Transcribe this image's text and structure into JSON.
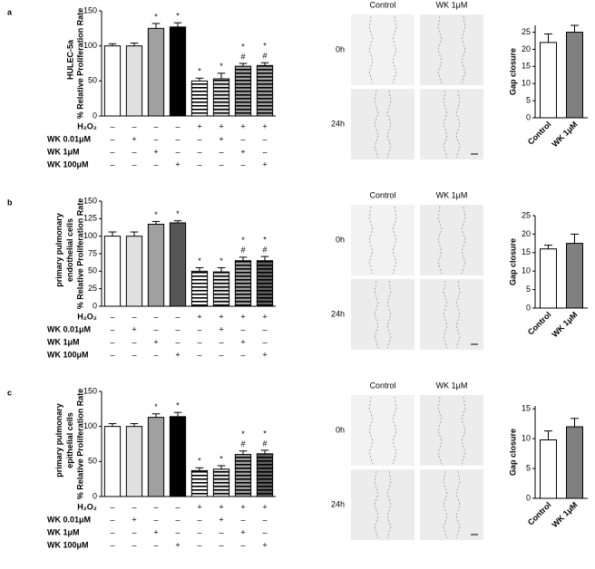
{
  "chart_data": [
    {
      "type": "bar",
      "ylabel": "% Relative Proliferation Rate",
      "ylim": [
        0,
        150
      ],
      "yticks": [
        0,
        50,
        100,
        150
      ],
      "values": [
        100,
        100,
        125,
        127,
        50,
        53,
        71,
        72
      ],
      "errors": [
        3,
        4,
        7,
        6,
        4,
        8,
        4,
        4
      ],
      "colors": [
        "#ffffff",
        "#e0e0e0",
        "#a0a0a0",
        "#000000",
        "#ffffff",
        "#e0e0e0",
        "#a0a0a0",
        "#a0a0a0"
      ],
      "hatch": [
        false,
        false,
        false,
        false,
        true,
        true,
        true,
        true
      ],
      "annotations": [
        {
          "bar": 2,
          "labels": [
            "*"
          ]
        },
        {
          "bar": 3,
          "labels": [
            "*"
          ]
        },
        {
          "bar": 4,
          "labels": [
            "*"
          ]
        },
        {
          "bar": 5,
          "labels": [
            "*"
          ]
        },
        {
          "bar": 6,
          "labels": [
            "*",
            "#"
          ]
        },
        {
          "bar": 7,
          "labels": [
            "*",
            "#"
          ]
        }
      ]
    },
    {
      "type": "bar",
      "ylabel": "Gap closure",
      "ylim": [
        0,
        27
      ],
      "yticks": [
        0,
        5,
        10,
        15,
        20,
        25
      ],
      "categories": [
        "Control",
        "WK 1μM"
      ],
      "values": [
        22,
        25
      ],
      "errors": [
        2.5,
        2
      ],
      "colors": [
        "#ffffff",
        "#808080"
      ]
    },
    {
      "type": "bar",
      "ylabel": "% Relative Proliferation Rate",
      "ylim": [
        0,
        150
      ],
      "yticks": [
        0,
        25,
        50,
        75,
        100,
        125,
        150
      ],
      "values": [
        100,
        100,
        117,
        119,
        50,
        49,
        65,
        65
      ],
      "errors": [
        6,
        6,
        4,
        3,
        5,
        6,
        5,
        6
      ],
      "colors": [
        "#ffffff",
        "#e0e0e0",
        "#a0a0a0",
        "#555555",
        "#ffffff",
        "#e0e0e0",
        "#a0a0a0",
        "#606060"
      ],
      "hatch": [
        false,
        false,
        false,
        false,
        true,
        true,
        true,
        true
      ],
      "annotations": [
        {
          "bar": 2,
          "labels": [
            "*"
          ]
        },
        {
          "bar": 3,
          "labels": [
            "*"
          ]
        },
        {
          "bar": 4,
          "labels": [
            "*"
          ]
        },
        {
          "bar": 5,
          "labels": [
            "*"
          ]
        },
        {
          "bar": 6,
          "labels": [
            "*",
            "#"
          ]
        },
        {
          "bar": 7,
          "labels": [
            "*",
            "#"
          ]
        }
      ]
    },
    {
      "type": "bar",
      "ylabel": "Gap closure",
      "ylim": [
        0,
        25
      ],
      "yticks": [
        0,
        5,
        10,
        15,
        20,
        25
      ],
      "categories": [
        "Control",
        "WK 1μM"
      ],
      "values": [
        16,
        17.5
      ],
      "errors": [
        1,
        2.5
      ],
      "colors": [
        "#ffffff",
        "#808080"
      ]
    },
    {
      "type": "bar",
      "ylabel": "% Relative Proliferation Rate",
      "ylim": [
        0,
        150
      ],
      "yticks": [
        0,
        50,
        100,
        150
      ],
      "values": [
        100,
        100,
        113,
        114,
        37,
        39,
        60,
        61
      ],
      "errors": [
        4,
        4,
        5,
        6,
        4,
        5,
        5,
        5
      ],
      "colors": [
        "#ffffff",
        "#e0e0e0",
        "#a0a0a0",
        "#000000",
        "#ffffff",
        "#e0e0e0",
        "#a0a0a0",
        "#606060"
      ],
      "hatch": [
        false,
        false,
        false,
        false,
        true,
        true,
        true,
        true
      ],
      "annotations": [
        {
          "bar": 2,
          "labels": [
            "*"
          ]
        },
        {
          "bar": 3,
          "labels": [
            "*"
          ]
        },
        {
          "bar": 4,
          "labels": [
            "*"
          ]
        },
        {
          "bar": 5,
          "labels": [
            "*"
          ]
        },
        {
          "bar": 6,
          "labels": [
            "*",
            "#"
          ]
        },
        {
          "bar": 7,
          "labels": [
            "*",
            "#"
          ]
        }
      ]
    },
    {
      "type": "bar",
      "ylabel": "Gap closure",
      "ylim": [
        0,
        15.5
      ],
      "yticks": [
        0,
        5,
        10,
        15
      ],
      "categories": [
        "Control",
        "WK 1μM"
      ],
      "values": [
        9.8,
        12
      ],
      "errors": [
        1.5,
        1.4
      ],
      "colors": [
        "#ffffff",
        "#808080"
      ]
    }
  ],
  "panels": [
    {
      "letter": "a",
      "cell_label": "HULEC-5a",
      "columns": [
        "Control",
        "WK 1μM"
      ],
      "rows": [
        "0h",
        "24h"
      ],
      "treatments": [
        {
          "label": "H₂O₂",
          "signs": [
            "–",
            "–",
            "–",
            "–",
            "+",
            "+",
            "+",
            "+"
          ]
        },
        {
          "label": "WK 0.01μM",
          "signs": [
            "–",
            "+",
            "–",
            "–",
            "–",
            "+",
            "–",
            "–"
          ]
        },
        {
          "label": "WK  1μM",
          "signs": [
            "–",
            "–",
            "+",
            "–",
            "–",
            "–",
            "+",
            "–"
          ]
        },
        {
          "label": "WK 100μM",
          "signs": [
            "–",
            "–",
            "–",
            "+",
            "–",
            "–",
            "–",
            "+"
          ]
        }
      ]
    },
    {
      "letter": "b",
      "cell_label": "primary pulmonary endothelial cells",
      "columns": [
        "Control",
        "WK 1μM"
      ],
      "rows": [
        "0h",
        "24h"
      ],
      "treatments": [
        {
          "label": "H₂O₂",
          "signs": [
            "–",
            "–",
            "–",
            "–",
            "+",
            "+",
            "+",
            "+"
          ]
        },
        {
          "label": "WK 0.01μM",
          "signs": [
            "–",
            "+",
            "–",
            "–",
            "–",
            "+",
            "–",
            "–"
          ]
        },
        {
          "label": "WK  1μM",
          "signs": [
            "–",
            "–",
            "+",
            "–",
            "–",
            "–",
            "+",
            "–"
          ]
        },
        {
          "label": "WK 100μM",
          "signs": [
            "–",
            "–",
            "–",
            "+",
            "–",
            "–",
            "–",
            "+"
          ]
        }
      ]
    },
    {
      "letter": "c",
      "cell_label": "primary pulmonary epithelial cells",
      "columns": [
        "Control",
        "WK 1μM"
      ],
      "rows": [
        "0h",
        "24h"
      ],
      "treatments": [
        {
          "label": "H₂O₂",
          "signs": [
            "–",
            "–",
            "–",
            "–",
            "+",
            "+",
            "+",
            "+"
          ]
        },
        {
          "label": "WK 0.01μM",
          "signs": [
            "–",
            "+",
            "–",
            "–",
            "–",
            "+",
            "–",
            "–"
          ]
        },
        {
          "label": "WK  1μM",
          "signs": [
            "–",
            "–",
            "+",
            "–",
            "–",
            "–",
            "+",
            "–"
          ]
        },
        {
          "label": "WK 100μM",
          "signs": [
            "–",
            "–",
            "–",
            "+",
            "–",
            "–",
            "–",
            "+"
          ]
        }
      ]
    }
  ]
}
